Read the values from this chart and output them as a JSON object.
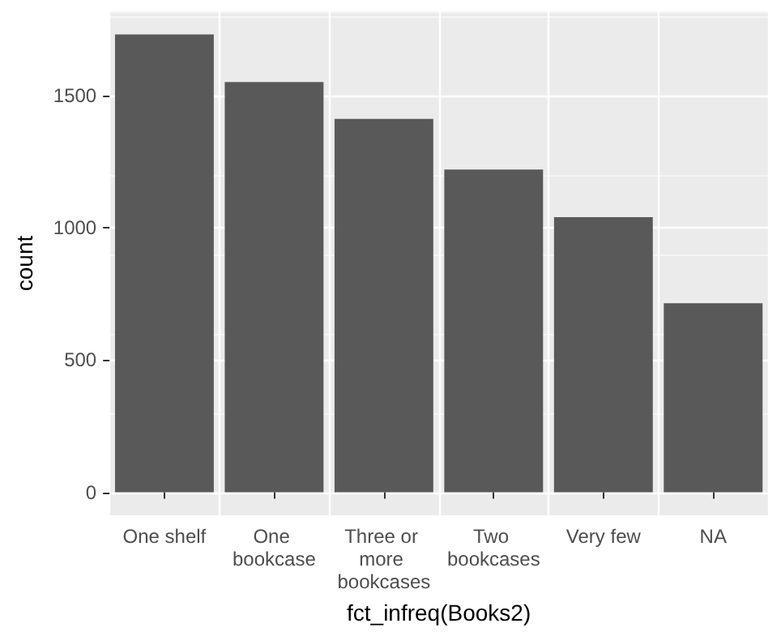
{
  "chart_data": {
    "type": "bar",
    "xlabel": "fct_infreq(Books2)",
    "ylabel": "count",
    "categories": [
      "One shelf",
      "One bookcase",
      "Three or more bookcases",
      "Two bookcases",
      "Very few",
      "NA"
    ],
    "values": [
      1732,
      1552,
      1412,
      1221,
      1041,
      715
    ],
    "color": "#595959",
    "ylim": [
      -87,
      1819
    ],
    "yticks": [
      0,
      500,
      1000,
      1500
    ],
    "grid": true
  }
}
